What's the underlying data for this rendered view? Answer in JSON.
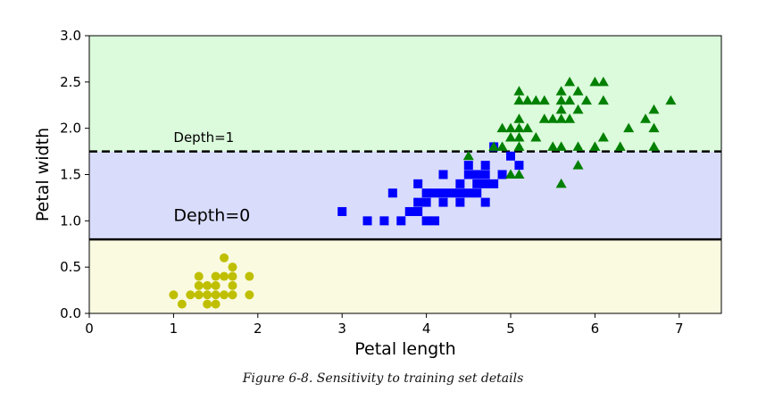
{
  "caption": "Figure 6-8. Sensitivity to training set details",
  "colors": {
    "region_top": "#dcfadc",
    "region_mid": "#d9dcfa",
    "region_bottom": "#fafae0",
    "setosa": "#bfbf00",
    "versicolor": "#0000ff",
    "virginica": "#008000"
  },
  "chart_data": {
    "type": "scatter",
    "xlabel": "Petal length",
    "ylabel": "Petal width",
    "xlim": [
      0,
      7.5
    ],
    "ylim": [
      0,
      3.0
    ],
    "x_ticks": [
      0,
      1,
      2,
      3,
      4,
      5,
      6,
      7
    ],
    "y_ticks": [
      "0.0",
      "0.5",
      "1.0",
      "1.5",
      "2.0",
      "2.5",
      "3.0"
    ],
    "grid": false,
    "regions": [
      {
        "y_from": 0.0,
        "y_to": 0.8,
        "color_key": "region_bottom"
      },
      {
        "y_from": 0.8,
        "y_to": 1.75,
        "color_key": "region_mid"
      },
      {
        "y_from": 1.75,
        "y_to": 3.0,
        "color_key": "region_top"
      }
    ],
    "boundaries": [
      {
        "y": 0.8,
        "style": "solid",
        "label": "Depth=0",
        "label_x": 1.0,
        "label_y": 1.0
      },
      {
        "y": 1.75,
        "style": "dashed",
        "label": "Depth=1",
        "label_x": 1.0,
        "label_y": 1.85
      }
    ],
    "series": [
      {
        "marker": "circle",
        "color_key": "setosa",
        "points": [
          [
            1.0,
            0.2
          ],
          [
            1.1,
            0.1
          ],
          [
            1.2,
            0.2
          ],
          [
            1.3,
            0.2
          ],
          [
            1.3,
            0.3
          ],
          [
            1.3,
            0.4
          ],
          [
            1.4,
            0.1
          ],
          [
            1.4,
            0.2
          ],
          [
            1.4,
            0.3
          ],
          [
            1.5,
            0.1
          ],
          [
            1.5,
            0.2
          ],
          [
            1.5,
            0.3
          ],
          [
            1.5,
            0.4
          ],
          [
            1.6,
            0.2
          ],
          [
            1.6,
            0.4
          ],
          [
            1.6,
            0.6
          ],
          [
            1.7,
            0.2
          ],
          [
            1.7,
            0.3
          ],
          [
            1.7,
            0.4
          ],
          [
            1.7,
            0.5
          ],
          [
            1.9,
            0.2
          ],
          [
            1.9,
            0.4
          ]
        ]
      },
      {
        "marker": "square",
        "color_key": "versicolor",
        "points": [
          [
            3.0,
            1.1
          ],
          [
            3.3,
            1.0
          ],
          [
            3.5,
            1.0
          ],
          [
            3.6,
            1.3
          ],
          [
            3.7,
            1.0
          ],
          [
            3.8,
            1.1
          ],
          [
            3.9,
            1.1
          ],
          [
            3.9,
            1.2
          ],
          [
            3.9,
            1.4
          ],
          [
            4.0,
            1.0
          ],
          [
            4.0,
            1.2
          ],
          [
            4.0,
            1.3
          ],
          [
            4.1,
            1.0
          ],
          [
            4.1,
            1.3
          ],
          [
            4.2,
            1.2
          ],
          [
            4.2,
            1.3
          ],
          [
            4.2,
            1.5
          ],
          [
            4.3,
            1.3
          ],
          [
            4.4,
            1.2
          ],
          [
            4.4,
            1.3
          ],
          [
            4.4,
            1.4
          ],
          [
            4.5,
            1.3
          ],
          [
            4.5,
            1.5
          ],
          [
            4.5,
            1.6
          ],
          [
            4.6,
            1.3
          ],
          [
            4.6,
            1.4
          ],
          [
            4.6,
            1.5
          ],
          [
            4.7,
            1.2
          ],
          [
            4.7,
            1.4
          ],
          [
            4.7,
            1.5
          ],
          [
            4.7,
            1.6
          ],
          [
            4.8,
            1.4
          ],
          [
            4.8,
            1.8
          ],
          [
            4.9,
            1.5
          ],
          [
            5.0,
            1.7
          ],
          [
            5.1,
            1.6
          ]
        ]
      },
      {
        "marker": "triangle",
        "color_key": "virginica",
        "points": [
          [
            4.5,
            1.7
          ],
          [
            4.8,
            1.8
          ],
          [
            4.9,
            1.8
          ],
          [
            5.0,
            1.5
          ],
          [
            5.0,
            2.0
          ],
          [
            5.1,
            1.5
          ],
          [
            5.1,
            1.8
          ],
          [
            5.1,
            1.9
          ],
          [
            5.1,
            2.0
          ],
          [
            5.1,
            2.3
          ],
          [
            5.1,
            2.4
          ],
          [
            5.2,
            2.3
          ],
          [
            5.3,
            1.9
          ],
          [
            5.3,
            2.3
          ],
          [
            5.4,
            2.1
          ],
          [
            5.4,
            2.3
          ],
          [
            5.5,
            2.1
          ],
          [
            5.6,
            1.4
          ],
          [
            5.6,
            1.8
          ],
          [
            5.6,
            2.1
          ],
          [
            5.6,
            2.2
          ],
          [
            5.6,
            2.4
          ],
          [
            5.7,
            2.1
          ],
          [
            5.7,
            2.3
          ],
          [
            5.7,
            2.5
          ],
          [
            5.8,
            1.6
          ],
          [
            5.8,
            1.8
          ],
          [
            5.8,
            2.2
          ],
          [
            5.9,
            2.3
          ],
          [
            6.0,
            1.8
          ],
          [
            6.0,
            2.5
          ],
          [
            6.1,
            1.9
          ],
          [
            6.1,
            2.3
          ],
          [
            6.1,
            2.5
          ],
          [
            6.3,
            1.8
          ],
          [
            6.4,
            2.0
          ],
          [
            6.6,
            2.1
          ],
          [
            6.7,
            2.0
          ],
          [
            6.7,
            2.2
          ],
          [
            6.9,
            2.3
          ],
          [
            5.0,
            1.9
          ],
          [
            4.9,
            2.0
          ],
          [
            5.2,
            2.0
          ],
          [
            5.5,
            1.8
          ],
          [
            5.8,
            2.4
          ],
          [
            6.7,
            1.8
          ],
          [
            5.1,
            2.1
          ],
          [
            5.6,
            2.3
          ]
        ]
      }
    ]
  }
}
